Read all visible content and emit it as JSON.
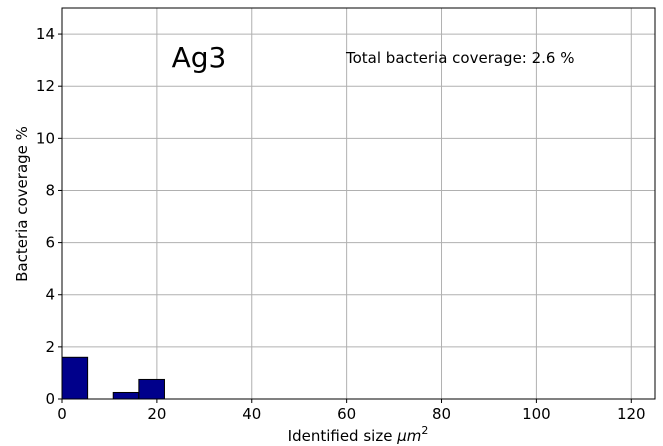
{
  "chart_data": {
    "type": "bar",
    "subtype": "histogram",
    "xlabel": "Identified size ",
    "xlabel_unit_base": "μm",
    "xlabel_unit_exp": "2",
    "ylabel": "Bacteria coverage %",
    "xlim": [
      0,
      125
    ],
    "ylim": [
      0,
      15
    ],
    "xticks": [
      0,
      20,
      40,
      60,
      80,
      100,
      120
    ],
    "yticks": [
      0,
      2,
      4,
      6,
      8,
      10,
      12,
      14
    ],
    "grid": true,
    "bar_color": "#00008b",
    "bins": [
      {
        "x0": 0,
        "x1": 5.4,
        "value": 1.6
      },
      {
        "x0": 10.8,
        "x1": 16.2,
        "value": 0.25
      },
      {
        "x0": 16.2,
        "x1": 21.6,
        "value": 0.75
      }
    ],
    "annotations": {
      "sample": "Ag3",
      "total": "Total bacteria coverage: 2.6 %"
    }
  }
}
